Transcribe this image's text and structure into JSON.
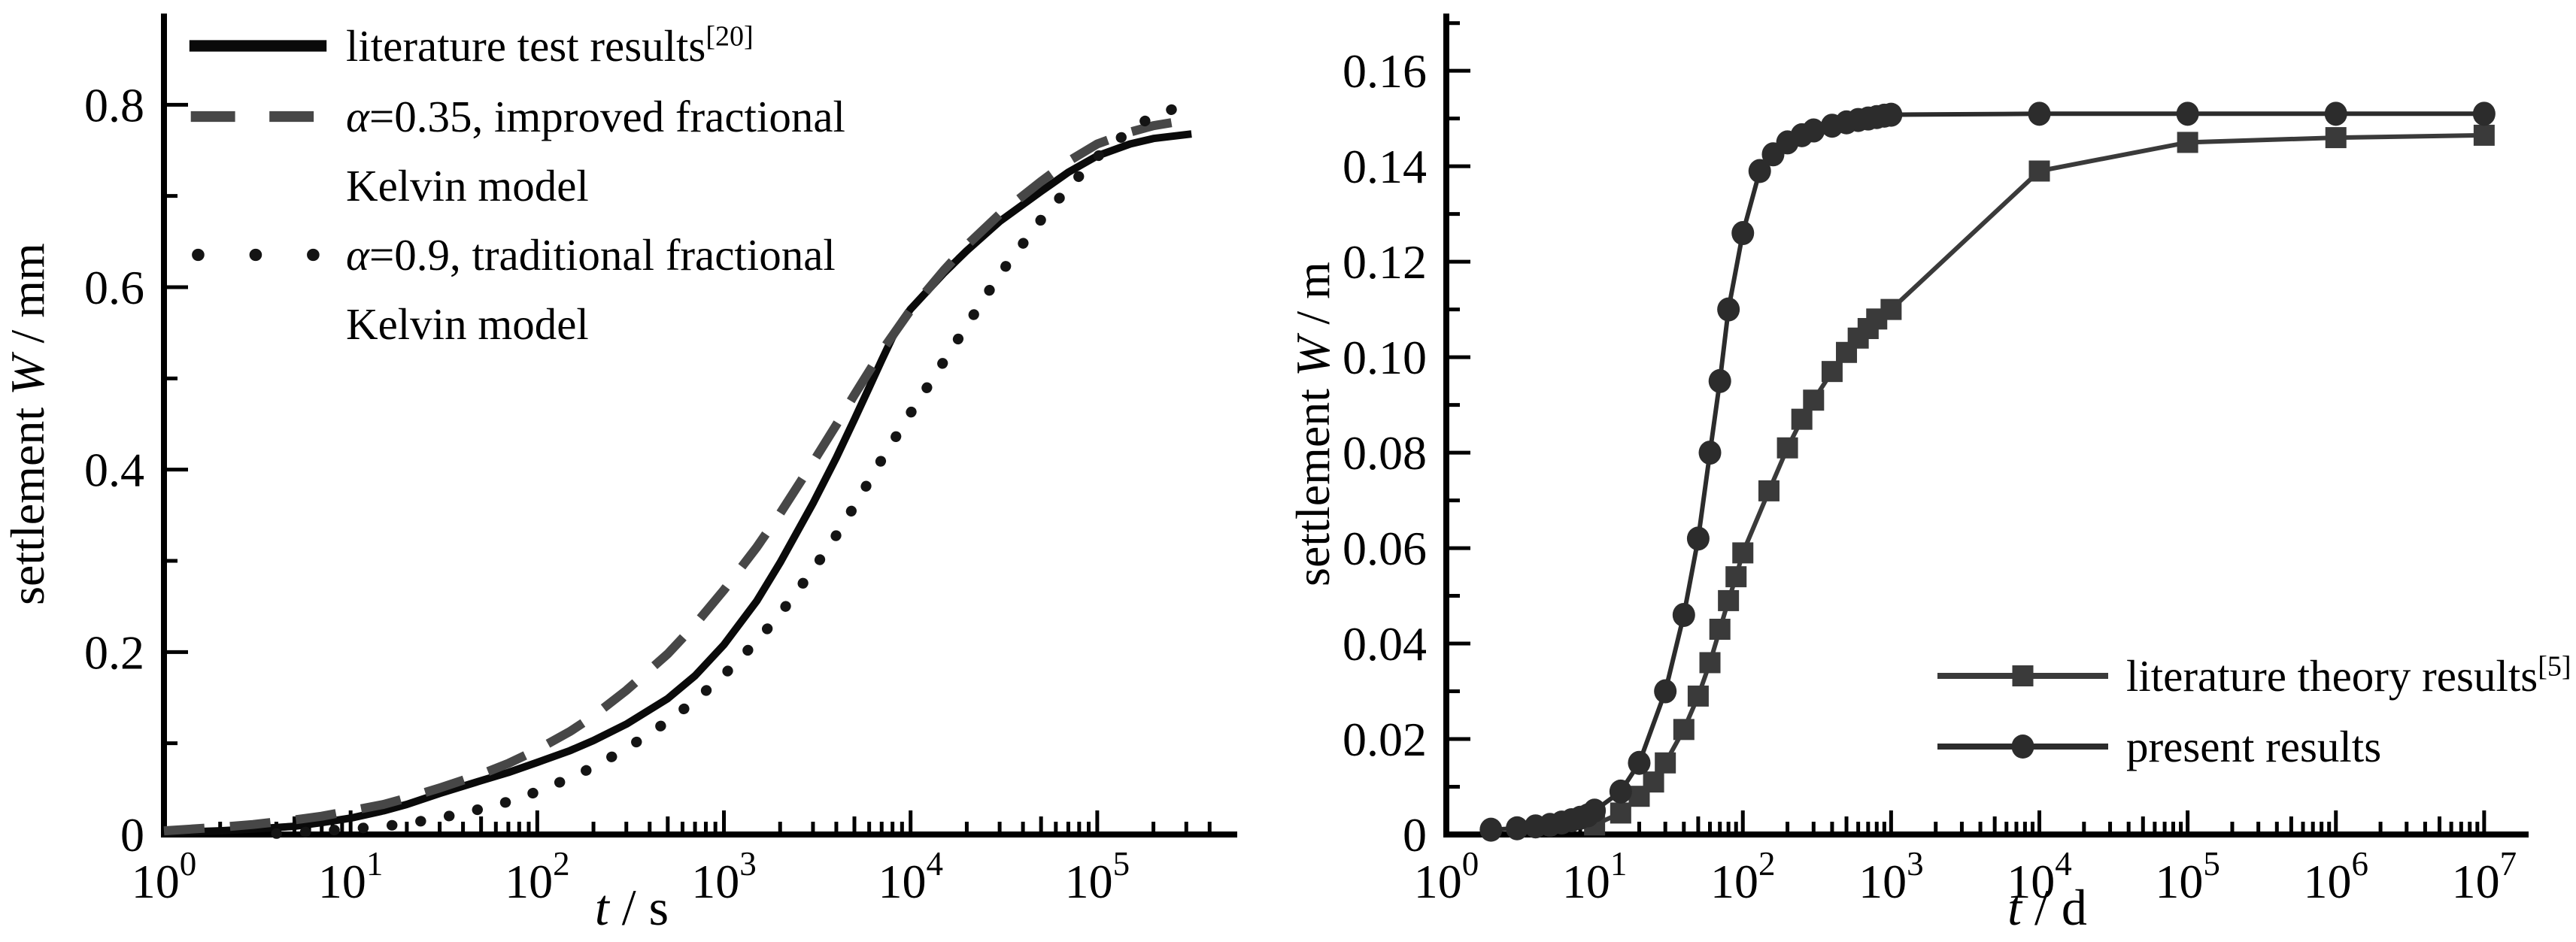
{
  "page": {
    "background": "#ffffff",
    "text_color": "#000000",
    "axis_color": "#000000"
  },
  "chart_data": [
    {
      "type": "line",
      "panel": "left",
      "xlabel": {
        "italic": "t",
        "rest": " / s"
      },
      "ylabel": {
        "pre": "settlement ",
        "italic": "W",
        "rest": " / mm"
      },
      "x_axis": {
        "scale": "log",
        "exponents": [
          0,
          1,
          2,
          3,
          4,
          5
        ],
        "domain_log": [
          0,
          5.75
        ],
        "minor_max_log": 5.62,
        "base_label": "10"
      },
      "y_axis": {
        "domain": [
          0,
          0.9
        ],
        "major": [
          0,
          0.2,
          0.4,
          0.6,
          0.8
        ],
        "labels": [
          "0",
          "0.2",
          "0.4",
          "0.6",
          "0.8"
        ],
        "minor_step": 0.1,
        "minor_max": 0.85
      },
      "grid": false,
      "legend": {
        "position": "top-left",
        "items": [
          {
            "text": "literature test results",
            "sup": "[20]"
          },
          {
            "italic": "α",
            "text": "=0.35, improved fractional",
            "text2": "Kelvin model"
          },
          {
            "italic": "α",
            "text": "=0.9, traditional fractional",
            "text2": "Kelvin model"
          }
        ]
      },
      "series": [
        {
          "name": "literature test results",
          "ref": "[20]",
          "style": "solid",
          "color": "#0a0a0a",
          "points": [
            [
              1,
              0.002
            ],
            [
              2,
              0.004
            ],
            [
              3,
              0.006
            ],
            [
              5,
              0.009
            ],
            [
              7,
              0.013
            ],
            [
              10,
              0.018
            ],
            [
              15,
              0.026
            ],
            [
              20,
              0.033
            ],
            [
              30,
              0.045
            ],
            [
              50,
              0.059
            ],
            [
              70,
              0.068
            ],
            [
              100,
              0.079
            ],
            [
              150,
              0.092
            ],
            [
              200,
              0.103
            ],
            [
              300,
              0.121
            ],
            [
              500,
              0.149
            ],
            [
              700,
              0.174
            ],
            [
              1000,
              0.208
            ],
            [
              1500,
              0.256
            ],
            [
              2000,
              0.298
            ],
            [
              3000,
              0.363
            ],
            [
              4000,
              0.413
            ],
            [
              5000,
              0.455
            ],
            [
              6000,
              0.49
            ],
            [
              7000,
              0.52
            ],
            [
              8000,
              0.545
            ],
            [
              9000,
              0.563
            ],
            [
              10000,
              0.576
            ],
            [
              15000,
              0.615
            ],
            [
              20000,
              0.64
            ],
            [
              30000,
              0.672
            ],
            [
              50000,
              0.705
            ],
            [
              70000,
              0.726
            ],
            [
              100000,
              0.744
            ],
            [
              150000,
              0.757
            ],
            [
              200000,
              0.763
            ],
            [
              320000,
              0.768
            ]
          ]
        },
        {
          "name": "α=0.35, improved fractional Kelvin model",
          "style": "dashed",
          "color": "#474747",
          "points": [
            [
              1,
              0.004
            ],
            [
              2,
              0.008
            ],
            [
              3,
              0.011
            ],
            [
              5,
              0.016
            ],
            [
              7,
              0.02
            ],
            [
              10,
              0.026
            ],
            [
              15,
              0.033
            ],
            [
              20,
              0.04
            ],
            [
              30,
              0.051
            ],
            [
              50,
              0.066
            ],
            [
              70,
              0.078
            ],
            [
              100,
              0.093
            ],
            [
              150,
              0.113
            ],
            [
              200,
              0.13
            ],
            [
              300,
              0.158
            ],
            [
              500,
              0.198
            ],
            [
              700,
              0.23
            ],
            [
              1000,
              0.268
            ],
            [
              1500,
              0.315
            ],
            [
              2000,
              0.352
            ],
            [
              3000,
              0.408
            ],
            [
              4000,
              0.449
            ],
            [
              5000,
              0.482
            ],
            [
              7000,
              0.53
            ],
            [
              10000,
              0.575
            ],
            [
              15000,
              0.618
            ],
            [
              20000,
              0.646
            ],
            [
              30000,
              0.68
            ],
            [
              50000,
              0.716
            ],
            [
              70000,
              0.738
            ],
            [
              100000,
              0.757
            ],
            [
              150000,
              0.77
            ],
            [
              200000,
              0.777
            ],
            [
              320000,
              0.784
            ]
          ]
        },
        {
          "name": "α=0.9, traditional fractional Kelvin model",
          "style": "dotted",
          "color": "#141414",
          "points": [
            [
              4,
              0.001
            ],
            [
              6,
              0.003
            ],
            [
              10,
              0.006
            ],
            [
              15,
              0.009
            ],
            [
              20,
              0.012
            ],
            [
              30,
              0.018
            ],
            [
              50,
              0.028
            ],
            [
              70,
              0.036
            ],
            [
              100,
              0.047
            ],
            [
              150,
              0.062
            ],
            [
              200,
              0.074
            ],
            [
              300,
              0.094
            ],
            [
              500,
              0.124
            ],
            [
              700,
              0.147
            ],
            [
              1000,
              0.175
            ],
            [
              1500,
              0.212
            ],
            [
              2000,
              0.242
            ],
            [
              3000,
              0.29
            ],
            [
              4000,
              0.328
            ],
            [
              5000,
              0.36
            ],
            [
              7000,
              0.411
            ],
            [
              10000,
              0.462
            ],
            [
              15000,
              0.518
            ],
            [
              20000,
              0.558
            ],
            [
              30000,
              0.614
            ],
            [
              50000,
              0.674
            ],
            [
              70000,
              0.709
            ],
            [
              100000,
              0.743
            ],
            [
              150000,
              0.772
            ],
            [
              200000,
              0.788
            ],
            [
              320000,
              0.802
            ]
          ]
        }
      ]
    },
    {
      "type": "line",
      "panel": "right",
      "xlabel": {
        "italic": "t",
        "rest": " / d"
      },
      "ylabel": {
        "pre": "settlement ",
        "italic": "W",
        "rest": " / m"
      },
      "x_axis": {
        "scale": "log",
        "exponents": [
          0,
          1,
          2,
          3,
          4,
          5,
          6,
          7
        ],
        "domain_log": [
          0,
          7.3
        ],
        "minor_max_log": 7.3,
        "base_label": "10"
      },
      "y_axis": {
        "domain": [
          0,
          0.172
        ],
        "major": [
          0,
          0.02,
          0.04,
          0.06,
          0.08,
          0.1,
          0.12,
          0.14,
          0.16
        ],
        "labels": [
          "0",
          "0.02",
          "0.04",
          "0.06",
          "0.08",
          "0.10",
          "0.12",
          "0.14",
          "0.16"
        ],
        "minor_step": 0.01,
        "minor_max": 0.17
      },
      "grid": false,
      "legend": {
        "position": "bottom-right",
        "items": [
          {
            "text": "literature theory results",
            "sup": "[5]"
          },
          {
            "text": "present results"
          }
        ]
      },
      "series": [
        {
          "name": "literature theory results",
          "ref": "[5]",
          "style": "marker-line",
          "marker": "square",
          "color": "#3a3a3a",
          "points": [
            [
              10,
              0.002
            ],
            [
              15,
              0.0045
            ],
            [
              20,
              0.008
            ],
            [
              25,
              0.011
            ],
            [
              30,
              0.015
            ],
            [
              40,
              0.022
            ],
            [
              50,
              0.029
            ],
            [
              60,
              0.036
            ],
            [
              70,
              0.043
            ],
            [
              80,
              0.049
            ],
            [
              90,
              0.054
            ],
            [
              100,
              0.059
            ],
            [
              150,
              0.072
            ],
            [
              200,
              0.081
            ],
            [
              250,
              0.087
            ],
            [
              300,
              0.091
            ],
            [
              400,
              0.097
            ],
            [
              500,
              0.101
            ],
            [
              600,
              0.104
            ],
            [
              700,
              0.106
            ],
            [
              800,
              0.108
            ],
            [
              1000,
              0.11
            ],
            [
              10000,
              0.139
            ],
            [
              100000,
              0.145
            ],
            [
              1000000,
              0.146
            ],
            [
              10000000,
              0.1465
            ]
          ]
        },
        {
          "name": "present results",
          "style": "marker-line",
          "marker": "circle",
          "color": "#2c2c2c",
          "points": [
            [
              2,
              0.001
            ],
            [
              3,
              0.0013
            ],
            [
              4,
              0.0017
            ],
            [
              5,
              0.002
            ],
            [
              6,
              0.0025
            ],
            [
              7,
              0.003
            ],
            [
              8,
              0.0035
            ],
            [
              9,
              0.004
            ],
            [
              10,
              0.005
            ],
            [
              15,
              0.009
            ],
            [
              20,
              0.015
            ],
            [
              30,
              0.03
            ],
            [
              40,
              0.046
            ],
            [
              50,
              0.062
            ],
            [
              60,
              0.08
            ],
            [
              70,
              0.095
            ],
            [
              80,
              0.11
            ],
            [
              100,
              0.126
            ],
            [
              130,
              0.139
            ],
            [
              160,
              0.1425
            ],
            [
              200,
              0.145
            ],
            [
              250,
              0.1465
            ],
            [
              300,
              0.1475
            ],
            [
              400,
              0.1485
            ],
            [
              500,
              0.1492
            ],
            [
              600,
              0.1497
            ],
            [
              700,
              0.15
            ],
            [
              800,
              0.1503
            ],
            [
              900,
              0.1506
            ],
            [
              1000,
              0.1508
            ],
            [
              10000,
              0.151
            ],
            [
              100000,
              0.151
            ],
            [
              1000000,
              0.151
            ],
            [
              10000000,
              0.151
            ]
          ]
        }
      ]
    }
  ]
}
